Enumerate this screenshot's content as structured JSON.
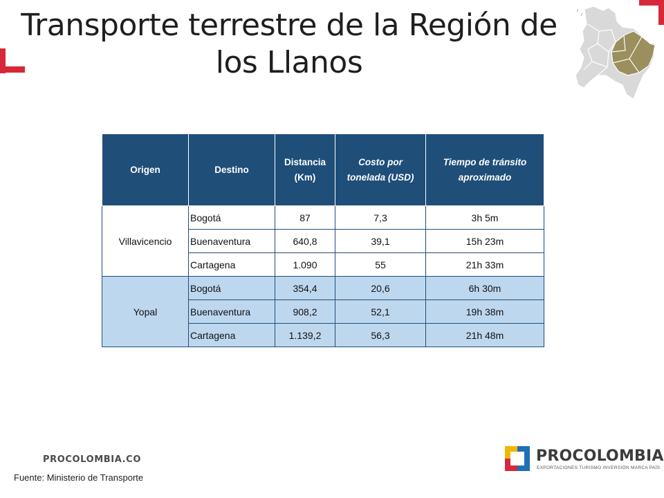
{
  "title": "Transporte terrestre de la Región de los Llanos",
  "table": {
    "headers": [
      "Origen",
      "Destino",
      "Distancia (Km)",
      "Costo por tonelada (USD)",
      "Tiempo de tránsito aproximado"
    ],
    "groups": [
      {
        "origin": "Villavicencio",
        "rows": [
          [
            "Bogotá",
            "87",
            "7,3",
            "3h 5m"
          ],
          [
            "Buenaventura",
            "640,8",
            "39,1",
            "15h 23m"
          ],
          [
            "Cartagena",
            "1.090",
            "55",
            "21h 33m"
          ]
        ]
      },
      {
        "origin": "Yopal",
        "rows": [
          [
            "Bogotá",
            "354,4",
            "20,6",
            "6h 30m"
          ],
          [
            "Buenaventura",
            "908,2",
            "52,1",
            "19h 38m"
          ],
          [
            "Cartagena",
            "1.139,2",
            "56,3",
            "21h 48m"
          ]
        ]
      }
    ]
  },
  "footer": {
    "site": "PROCOLOMBIA.CO",
    "source": "Fuente: Ministerio de Transporte"
  },
  "logo": {
    "name": "PROCOLOMBIA",
    "tagline": "EXPORTACIONES TURISMO INVERSIÓN MARCA PAÍS"
  },
  "colors": {
    "accent": "#d7283a",
    "header_bg": "#1f4e79",
    "group2_bg": "#bdd7ee",
    "region_highlight": "#9b8f5e"
  }
}
